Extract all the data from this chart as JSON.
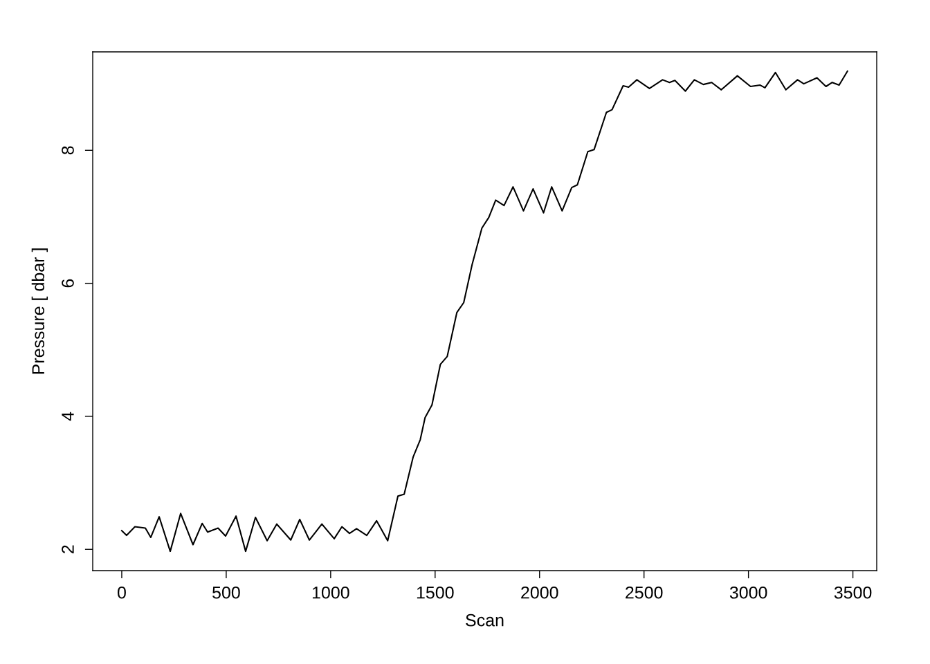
{
  "chart_data": {
    "type": "line",
    "xlabel": "Scan",
    "ylabel": "Pressure [ dbar ]",
    "x": [
      0,
      23,
      63,
      113,
      139,
      179,
      232,
      282,
      341,
      385,
      411,
      461,
      497,
      547,
      593,
      640,
      696,
      742,
      809,
      852,
      898,
      958,
      1017,
      1054,
      1090,
      1124,
      1173,
      1220,
      1273,
      1322,
      1352,
      1395,
      1429,
      1452,
      1485,
      1525,
      1558,
      1604,
      1637,
      1677,
      1724,
      1757,
      1790,
      1830,
      1873,
      1923,
      1969,
      2019,
      2058,
      2108,
      2154,
      2181,
      2231,
      2261,
      2320,
      2347,
      2400,
      2426,
      2466,
      2526,
      2589,
      2622,
      2648,
      2698,
      2741,
      2784,
      2824,
      2870,
      2947,
      3010,
      3056,
      3079,
      3129,
      3179,
      3235,
      3265,
      3328,
      3371,
      3401,
      3434,
      3474
    ],
    "series": [
      {
        "color": "#000000",
        "values": [
          2.28,
          2.21,
          2.34,
          2.32,
          2.18,
          2.49,
          1.97,
          2.54,
          2.07,
          2.39,
          2.26,
          2.32,
          2.2,
          2.5,
          1.97,
          2.48,
          2.13,
          2.38,
          2.14,
          2.45,
          2.14,
          2.38,
          2.16,
          2.34,
          2.24,
          2.31,
          2.21,
          2.43,
          2.13,
          2.8,
          2.83,
          3.39,
          3.65,
          3.98,
          4.17,
          4.78,
          4.9,
          5.56,
          5.71,
          6.28,
          6.83,
          6.99,
          7.25,
          7.17,
          7.45,
          7.09,
          7.42,
          7.06,
          7.45,
          7.09,
          7.44,
          7.48,
          7.98,
          8.01,
          8.57,
          8.61,
          8.97,
          8.95,
          9.06,
          8.93,
          9.06,
          9.02,
          9.05,
          8.89,
          9.06,
          8.99,
          9.02,
          8.91,
          9.12,
          8.96,
          8.98,
          8.94,
          9.17,
          8.91,
          9.06,
          9.0,
          9.09,
          8.96,
          9.02,
          8.98,
          9.19
        ]
      }
    ],
    "xlim": [
      -139,
      3614
    ],
    "ylim": [
      1.68,
      9.48
    ],
    "xticks": [
      0,
      500,
      1000,
      1500,
      2000,
      2500,
      3000,
      3500
    ],
    "yticks": [
      2,
      4,
      6,
      8
    ],
    "grid": false,
    "legend": false,
    "line_style": "solid",
    "marker": "none"
  }
}
